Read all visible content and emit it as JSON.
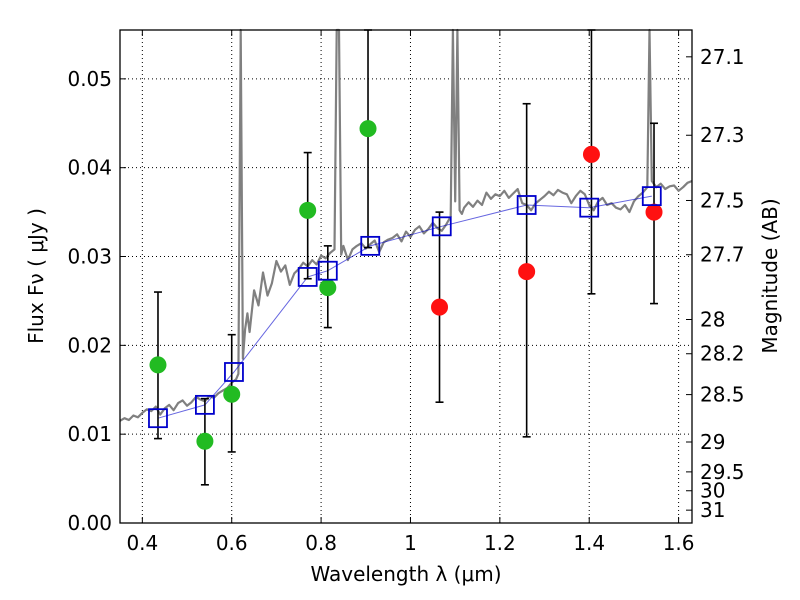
{
  "chart_data": {
    "type": "scatter",
    "title": "",
    "xlabel": "Wavelength  λ (μm)",
    "ylabel": "Flux  Fν  ( μJy )",
    "y2label": "Magnitude (AB)",
    "xlim": [
      0.35,
      1.63
    ],
    "ylim": [
      0.0,
      0.0555
    ],
    "grid": true,
    "x_ticks": [
      {
        "value": 0.4,
        "label": "0.4"
      },
      {
        "value": 0.6,
        "label": "0.6"
      },
      {
        "value": 0.8,
        "label": "0.8"
      },
      {
        "value": 1.0,
        "label": "1"
      },
      {
        "value": 1.2,
        "label": "1.2"
      },
      {
        "value": 1.4,
        "label": "1.4"
      },
      {
        "value": 1.6,
        "label": "1.6"
      }
    ],
    "y_ticks": [
      {
        "value": 0.0,
        "label": "0.00"
      },
      {
        "value": 0.01,
        "label": "0.01"
      },
      {
        "value": 0.02,
        "label": "0.02"
      },
      {
        "value": 0.03,
        "label": "0.03"
      },
      {
        "value": 0.04,
        "label": "0.04"
      },
      {
        "value": 0.05,
        "label": "0.05"
      }
    ],
    "mag_ticks": [
      {
        "value": 27.1,
        "label": "27.1"
      },
      {
        "value": 27.3,
        "label": "27.3"
      },
      {
        "value": 27.5,
        "label": "27.5"
      },
      {
        "value": 27.7,
        "label": "27.7"
      },
      {
        "value": 28,
        "label": "28"
      },
      {
        "value": 28.2,
        "label": "28.2"
      },
      {
        "value": 28.5,
        "label": "28.5"
      },
      {
        "value": 29,
        "label": "29"
      },
      {
        "value": 29.5,
        "label": "29.5"
      },
      {
        "value": 30,
        "label": "30"
      },
      {
        "value": 31,
        "label": "31"
      }
    ],
    "colors": {
      "model_spectrum": "#808080",
      "hst_points": "#22bb22",
      "ir_points": "#ff1111",
      "model_photometry": "#0000cc",
      "errorbars": "#000000",
      "grid": "#000000"
    },
    "series": [
      {
        "name": "model_spectrum",
        "kind": "line",
        "x": [
          0.35,
          0.36,
          0.37,
          0.38,
          0.39,
          0.4,
          0.41,
          0.42,
          0.43,
          0.44,
          0.45,
          0.46,
          0.47,
          0.48,
          0.49,
          0.5,
          0.51,
          0.52,
          0.53,
          0.54,
          0.55,
          0.56,
          0.57,
          0.58,
          0.59,
          0.6,
          0.61,
          0.615,
          0.62,
          0.625,
          0.63,
          0.635,
          0.64,
          0.65,
          0.66,
          0.67,
          0.68,
          0.69,
          0.7,
          0.71,
          0.72,
          0.73,
          0.74,
          0.75,
          0.76,
          0.77,
          0.78,
          0.79,
          0.8,
          0.81,
          0.82,
          0.83,
          0.835,
          0.84,
          0.845,
          0.85,
          0.86,
          0.87,
          0.88,
          0.89,
          0.9,
          0.91,
          0.92,
          0.93,
          0.94,
          0.95,
          0.96,
          0.97,
          0.98,
          0.99,
          1.0,
          1.01,
          1.02,
          1.03,
          1.04,
          1.05,
          1.06,
          1.07,
          1.08,
          1.09,
          1.095,
          1.1,
          1.105,
          1.11,
          1.115,
          1.12,
          1.13,
          1.14,
          1.15,
          1.16,
          1.17,
          1.18,
          1.19,
          1.2,
          1.21,
          1.22,
          1.23,
          1.24,
          1.25,
          1.26,
          1.27,
          1.28,
          1.29,
          1.3,
          1.31,
          1.32,
          1.33,
          1.34,
          1.35,
          1.36,
          1.37,
          1.38,
          1.39,
          1.4,
          1.41,
          1.42,
          1.43,
          1.44,
          1.45,
          1.46,
          1.47,
          1.48,
          1.49,
          1.5,
          1.51,
          1.52,
          1.53,
          1.535,
          1.54,
          1.55,
          1.56,
          1.57,
          1.58,
          1.59,
          1.6,
          1.61,
          1.62,
          1.63
        ],
        "y": [
          0.0115,
          0.0118,
          0.0116,
          0.0121,
          0.0119,
          0.0124,
          0.0128,
          0.0126,
          0.0131,
          0.0122,
          0.0129,
          0.0133,
          0.0127,
          0.0135,
          0.0138,
          0.0132,
          0.0136,
          0.0142,
          0.0139,
          0.0137,
          0.0143,
          0.0141,
          0.0146,
          0.0149,
          0.0152,
          0.0158,
          0.0162,
          0.0168,
          0.0555,
          0.0185,
          0.0218,
          0.0236,
          0.0215,
          0.0262,
          0.0245,
          0.0282,
          0.0256,
          0.027,
          0.0295,
          0.0283,
          0.029,
          0.0268,
          0.0281,
          0.0286,
          0.0293,
          0.0289,
          0.0296,
          0.0291,
          0.0301,
          0.0298,
          0.0304,
          0.0308,
          0.0555,
          0.0555,
          0.0302,
          0.0312,
          0.0296,
          0.0308,
          0.0312,
          0.0315,
          0.0309,
          0.0314,
          0.0318,
          0.0305,
          0.0316,
          0.0319,
          0.0321,
          0.0325,
          0.0317,
          0.0328,
          0.0322,
          0.033,
          0.0334,
          0.0326,
          0.0331,
          0.0338,
          0.0332,
          0.0329,
          0.0336,
          0.0345,
          0.0555,
          0.0362,
          0.0555,
          0.0352,
          0.0348,
          0.0355,
          0.0361,
          0.0356,
          0.0363,
          0.0358,
          0.0372,
          0.0365,
          0.037,
          0.0368,
          0.0374,
          0.0366,
          0.0371,
          0.0376,
          0.036,
          0.0358,
          0.0352,
          0.036,
          0.0364,
          0.0368,
          0.0373,
          0.0369,
          0.0375,
          0.0372,
          0.037,
          0.036,
          0.0368,
          0.0374,
          0.037,
          0.0358,
          0.0352,
          0.0362,
          0.0366,
          0.0358,
          0.036,
          0.0355,
          0.0353,
          0.0358,
          0.035,
          0.0362,
          0.0368,
          0.0372,
          0.0378,
          0.0555,
          0.0385,
          0.0378,
          0.0382,
          0.0376,
          0.0379,
          0.038,
          0.0374,
          0.0378,
          0.0383,
          0.0385
        ]
      },
      {
        "name": "hst_photometry",
        "kind": "points",
        "x": [
          0.435,
          0.54,
          0.6,
          0.77,
          0.815,
          0.905
        ],
        "y": [
          0.0178,
          0.0092,
          0.0145,
          0.0352,
          0.0265,
          0.0444
        ],
        "yerr_low": [
          0.0095,
          0.0043,
          0.008,
          0.0275,
          0.022,
          0.031
        ],
        "yerr_high": [
          0.026,
          0.014,
          0.0212,
          0.0417,
          0.0312,
          0.0555
        ]
      },
      {
        "name": "ir_photometry",
        "kind": "points",
        "x": [
          1.065,
          1.26,
          1.405,
          1.545
        ],
        "y": [
          0.0243,
          0.0283,
          0.0415,
          0.035
        ],
        "yerr_low": [
          0.0136,
          0.0097,
          0.0258,
          0.0247
        ],
        "yerr_high": [
          0.035,
          0.0472,
          0.0555,
          0.045
        ]
      },
      {
        "name": "model_photometry",
        "kind": "open_squares",
        "x": [
          0.435,
          0.54,
          0.605,
          0.77,
          0.815,
          0.91,
          1.07,
          1.26,
          1.4,
          1.54
        ],
        "y": [
          0.0118,
          0.0133,
          0.017,
          0.0277,
          0.0284,
          0.0312,
          0.0334,
          0.0358,
          0.0355,
          0.0368
        ]
      }
    ]
  }
}
